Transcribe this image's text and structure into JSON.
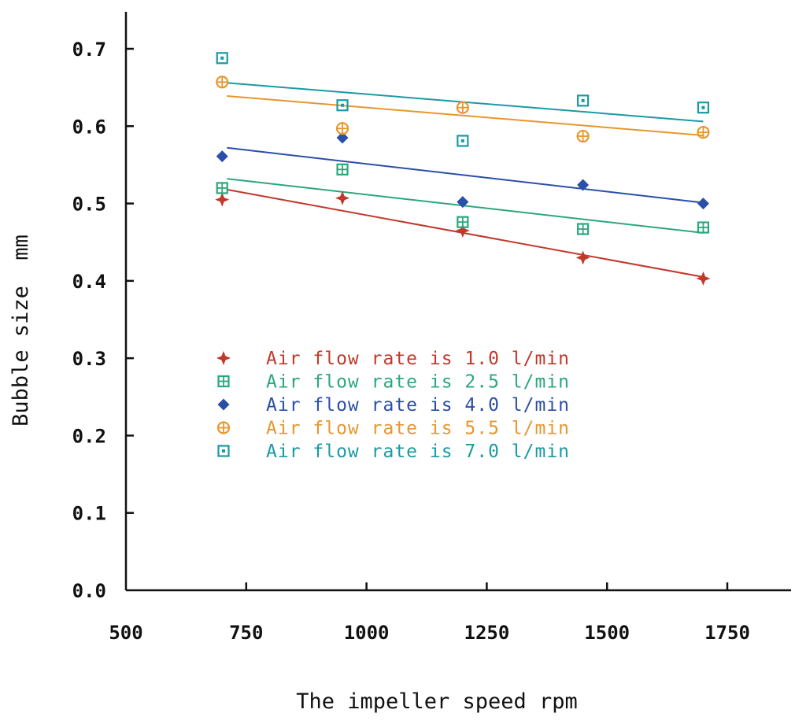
{
  "chart_data": {
    "type": "scatter",
    "title": "",
    "xlabel": "The impeller speed rpm",
    "ylabel": "Bubble size  mm",
    "xlim": [
      500,
      1750
    ],
    "ylim": [
      0.0,
      0.7
    ],
    "xticks": [
      500,
      750,
      1000,
      1250,
      1500,
      1750
    ],
    "xtick_labels": [
      "500",
      "750",
      "1000",
      "1250",
      "1500",
      "1750"
    ],
    "yticks": [
      0.0,
      0.1,
      0.2,
      0.3,
      0.4,
      0.5,
      0.6,
      0.7
    ],
    "ytick_labels": [
      "0.0",
      "0.1",
      "0.2",
      "0.3",
      "0.4",
      "0.5",
      "0.6",
      "0.7"
    ],
    "grid": false,
    "legend_position": "center-left",
    "series": [
      {
        "name": "Air flow rate is 1.0 l/min",
        "color": "#c0392b",
        "marker": "star",
        "x": [
          700,
          950,
          1200,
          1450,
          1700
        ],
        "y": [
          0.505,
          0.507,
          0.465,
          0.43,
          0.403
        ],
        "fit": [
          [
            710,
            0.518
          ],
          [
            1700,
            0.405
          ]
        ]
      },
      {
        "name": "Air flow rate is 2.5 l/min",
        "color": "#2aa87a",
        "marker": "square-grid",
        "x": [
          700,
          950,
          1200,
          1450,
          1700
        ],
        "y": [
          0.52,
          0.544,
          0.476,
          0.467,
          0.469
        ],
        "fit": [
          [
            710,
            0.532
          ],
          [
            1700,
            0.462
          ]
        ]
      },
      {
        "name": "Air flow rate is 4.0 l/min",
        "color": "#2a4fa8",
        "marker": "diamond",
        "x": [
          700,
          950,
          1200,
          1450,
          1700
        ],
        "y": [
          0.561,
          0.585,
          0.502,
          0.524,
          0.5
        ],
        "fit": [
          [
            710,
            0.572
          ],
          [
            1700,
            0.501
          ]
        ]
      },
      {
        "name": "Air flow rate is 5.5 l/min",
        "color": "#e8962e",
        "marker": "circle-plus",
        "x": [
          700,
          950,
          1200,
          1450,
          1700
        ],
        "y": [
          0.657,
          0.597,
          0.624,
          0.587,
          0.592
        ],
        "fit": [
          [
            710,
            0.639
          ],
          [
            1700,
            0.588
          ]
        ]
      },
      {
        "name": "Air flow rate is 7.0 l/min",
        "color": "#1a9aa3",
        "marker": "square-dot",
        "x": [
          700,
          950,
          1200,
          1450,
          1700
        ],
        "y": [
          0.688,
          0.627,
          0.581,
          0.633,
          0.624
        ],
        "fit": [
          [
            710,
            0.656
          ],
          [
            1700,
            0.606
          ]
        ]
      }
    ]
  }
}
